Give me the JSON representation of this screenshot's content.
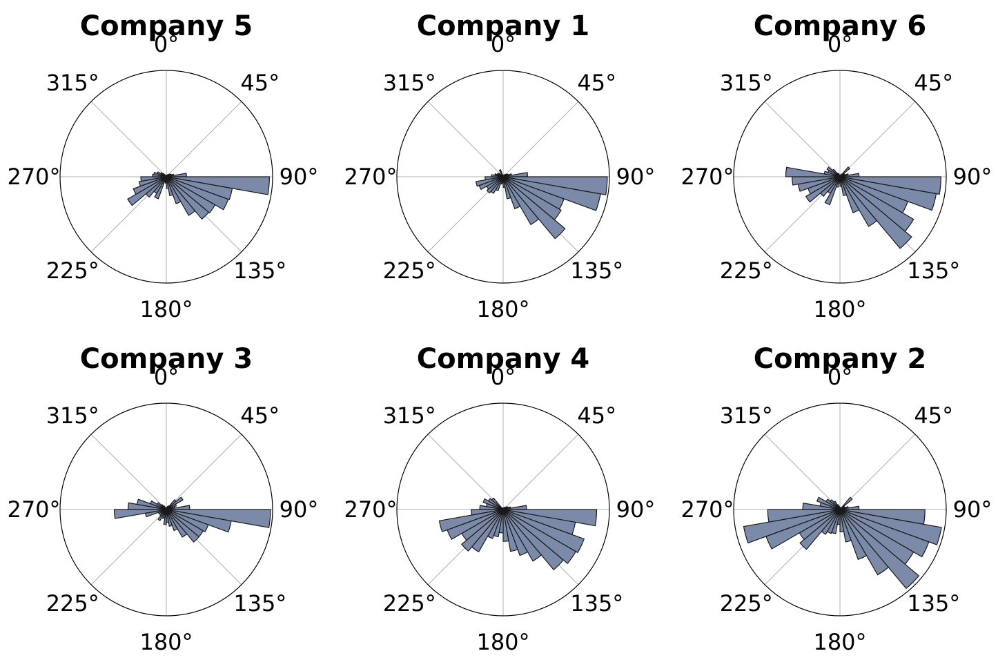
{
  "chart_data": {
    "type": "rose",
    "direction": "clockwise",
    "zero_location": "north",
    "bin_width_deg": 10,
    "bin_centers_deg": [
      5,
      15,
      25,
      35,
      45,
      55,
      65,
      75,
      85,
      95,
      105,
      115,
      125,
      135,
      145,
      155,
      165,
      175,
      185,
      195,
      205,
      215,
      225,
      235,
      245,
      255,
      265,
      275,
      285,
      295,
      305,
      315,
      325,
      335,
      345,
      355
    ],
    "rmax": 1.0,
    "radial_ticks": "hidden",
    "angle_tick_labels": [
      "0°",
      "45°",
      "90°",
      "135°",
      "180°",
      "225°",
      "270°",
      "315°"
    ],
    "grid": true,
    "bar_color": "#7a8aa8",
    "bar_edge_color": "#1a1a1a",
    "panels": [
      {
        "title": "Company 5",
        "values": [
          0.01,
          0.01,
          0.02,
          0.02,
          0.03,
          0.04,
          0.05,
          0.07,
          0.19,
          0.97,
          0.63,
          0.62,
          0.53,
          0.52,
          0.42,
          0.27,
          0.18,
          0.11,
          0.06,
          0.05,
          0.22,
          0.18,
          0.25,
          0.42,
          0.33,
          0.26,
          0.24,
          0.13,
          0.12,
          0.09,
          0.06,
          0.04,
          0.02,
          0.01,
          0.01,
          0.01
        ]
      },
      {
        "title": "Company 1",
        "values": [
          0.01,
          0.01,
          0.02,
          0.02,
          0.03,
          0.04,
          0.05,
          0.08,
          0.23,
          0.98,
          0.93,
          0.61,
          0.63,
          0.76,
          0.52,
          0.32,
          0.21,
          0.1,
          0.06,
          0.07,
          0.14,
          0.18,
          0.2,
          0.18,
          0.24,
          0.26,
          0.17,
          0.11,
          0.08,
          0.06,
          0.05,
          0.03,
          0.02,
          0.07,
          0.01,
          0.01
        ]
      },
      {
        "title": "Company 6",
        "values": [
          0.01,
          0.01,
          0.02,
          0.03,
          0.12,
          0.04,
          0.05,
          0.08,
          0.18,
          0.95,
          0.92,
          0.68,
          0.8,
          0.88,
          0.54,
          0.36,
          0.18,
          0.09,
          0.06,
          0.1,
          0.28,
          0.18,
          0.24,
          0.37,
          0.32,
          0.4,
          0.45,
          0.51,
          0.15,
          0.12,
          0.14,
          0.09,
          0.04,
          0.03,
          0.01,
          0.01
        ]
      },
      {
        "title": "Company 3",
        "values": [
          0.01,
          0.02,
          0.03,
          0.04,
          0.12,
          0.18,
          0.1,
          0.08,
          0.22,
          0.98,
          0.62,
          0.42,
          0.4,
          0.4,
          0.3,
          0.21,
          0.16,
          0.12,
          0.14,
          0.08,
          0.09,
          0.12,
          0.08,
          0.06,
          0.08,
          0.2,
          0.49,
          0.36,
          0.28,
          0.16,
          0.1,
          0.06,
          0.04,
          0.02,
          0.01,
          0.01
        ]
      },
      {
        "title": "Company 4",
        "values": [
          0.01,
          0.01,
          0.02,
          0.02,
          0.03,
          0.04,
          0.05,
          0.07,
          0.22,
          0.88,
          0.69,
          0.81,
          0.79,
          0.74,
          0.56,
          0.46,
          0.4,
          0.3,
          0.22,
          0.26,
          0.29,
          0.46,
          0.51,
          0.45,
          0.56,
          0.61,
          0.3,
          0.22,
          0.16,
          0.2,
          0.16,
          0.14,
          0.02,
          0.01,
          0.01,
          0.01
        ]
      },
      {
        "title": "Company 2",
        "values": [
          0.01,
          0.01,
          0.02,
          0.02,
          0.15,
          0.04,
          0.05,
          0.08,
          0.18,
          0.8,
          0.97,
          0.89,
          0.8,
          0.97,
          0.71,
          0.5,
          0.31,
          0.21,
          0.14,
          0.23,
          0.24,
          0.27,
          0.49,
          0.44,
          0.74,
          0.92,
          0.68,
          0.35,
          0.19,
          0.23,
          0.15,
          0.12,
          0.09,
          0.05,
          0.03,
          0.02
        ]
      }
    ]
  }
}
